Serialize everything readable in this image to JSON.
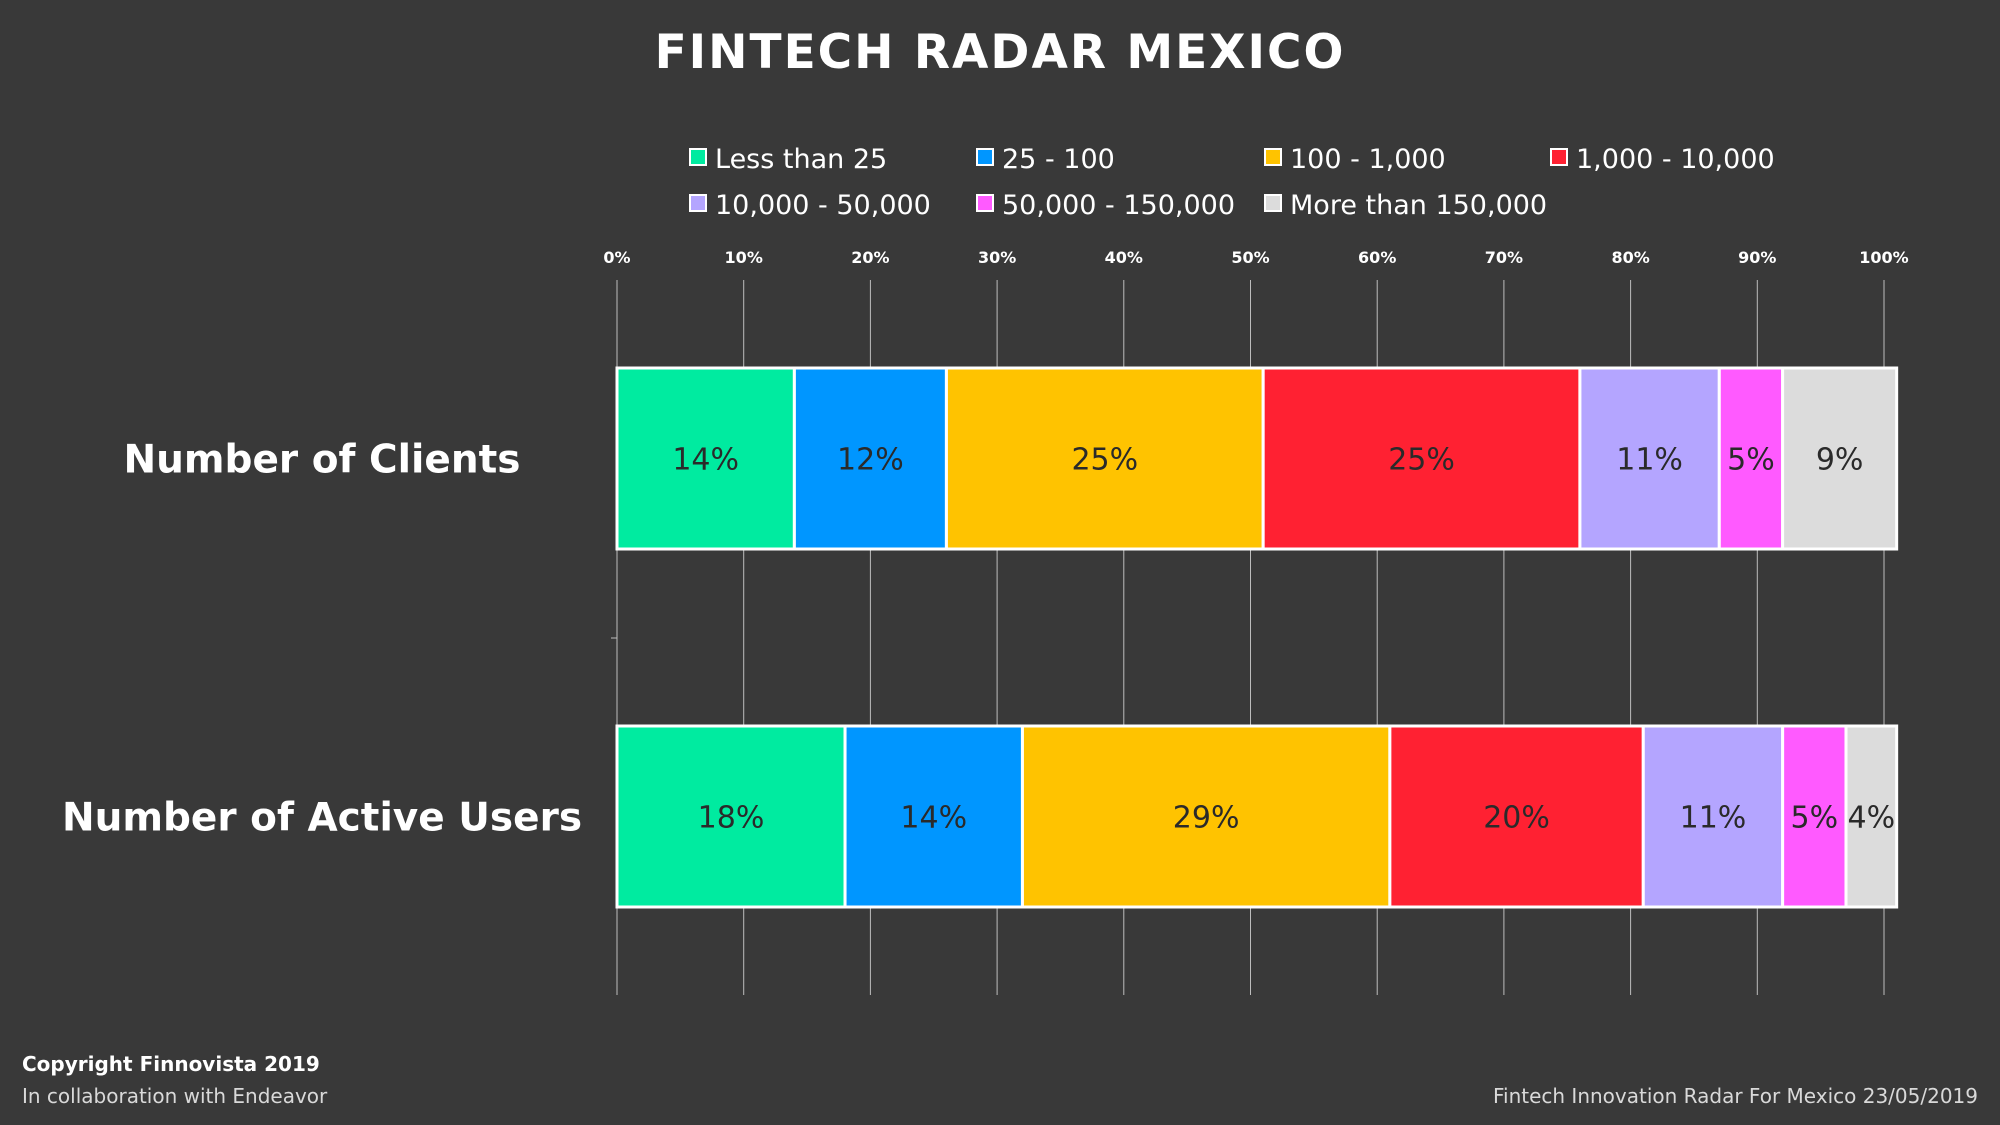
{
  "page": {
    "title": "FINTECH RADAR MEXICO",
    "copyright": "Copyright Finnovista 2019",
    "collaboration": "In collaboration with Endeavor",
    "source": "Fintech Innovation Radar For Mexico 23/05/2019"
  },
  "chart_data": {
    "type": "bar",
    "orientation": "horizontal",
    "stacked": true,
    "title": "FINTECH RADAR MEXICO",
    "categories": [
      "Number of Clients",
      "Number of Active Users"
    ],
    "xaxis": {
      "range": [
        0,
        100
      ],
      "unit": "%",
      "position": "top",
      "ticks": [
        "0%",
        "10%",
        "20%",
        "30%",
        "40%",
        "50%",
        "60%",
        "70%",
        "80%",
        "90%",
        "100%"
      ]
    },
    "grid": true,
    "legend_position": "top",
    "series": [
      {
        "name": "Less than 25",
        "color": "#00EBA0",
        "values": [
          14,
          18
        ],
        "labels": [
          "14%",
          "18%"
        ]
      },
      {
        "name": "25 - 100",
        "color": "#0096FF",
        "values": [
          12,
          14
        ],
        "labels": [
          "12%",
          "14%"
        ]
      },
      {
        "name": "100 - 1,000",
        "color": "#FFC300",
        "values": [
          25,
          29
        ],
        "labels": [
          "25%",
          "29%"
        ]
      },
      {
        "name": "1,000 - 10,000",
        "color": "#FF2132",
        "values": [
          25,
          20
        ],
        "labels": [
          "25%",
          "20%"
        ]
      },
      {
        "name": "10,000 - 50,000",
        "color": "#B4A5FF",
        "values": [
          11,
          11
        ],
        "labels": [
          "11%",
          "11%"
        ]
      },
      {
        "name": "50,000 - 150,000",
        "color": "#FF5AFF",
        "values": [
          5,
          5
        ],
        "labels": [
          "5%",
          "5%"
        ]
      },
      {
        "name": "More than 150,000",
        "color": "#DCDCDC",
        "values": [
          9,
          4
        ],
        "labels": [
          "9%",
          "4%"
        ]
      }
    ]
  }
}
